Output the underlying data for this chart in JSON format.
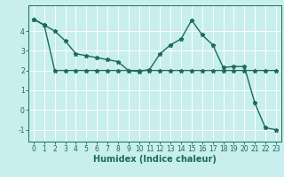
{
  "title": "",
  "xlabel": "Humidex (Indice chaleur)",
  "background_color": "#c8eeee",
  "grid_color": "#ffffff",
  "line_color": "#1a6b5a",
  "xlim": [
    -0.5,
    23.5
  ],
  "ylim": [
    -1.6,
    5.3
  ],
  "xticks": [
    0,
    1,
    2,
    3,
    4,
    5,
    6,
    7,
    8,
    9,
    10,
    11,
    12,
    13,
    14,
    15,
    16,
    17,
    18,
    19,
    20,
    21,
    22,
    23
  ],
  "yticks": [
    -1,
    0,
    1,
    2,
    3,
    4
  ],
  "line1_x": [
    0,
    1,
    2,
    3,
    4,
    5,
    6,
    7,
    8,
    9,
    10,
    11,
    12,
    13,
    14,
    15,
    16,
    17,
    18,
    19,
    20,
    21,
    22,
    23
  ],
  "line1_y": [
    4.6,
    4.3,
    4.0,
    3.5,
    2.85,
    2.75,
    2.65,
    2.55,
    2.45,
    2.0,
    1.95,
    2.05,
    2.85,
    3.3,
    3.6,
    4.55,
    3.8,
    3.3,
    2.15,
    2.2,
    2.2,
    0.35,
    -0.9,
    -1.0
  ],
  "line2_x": [
    0,
    1,
    2,
    3,
    4,
    5,
    6,
    7,
    8,
    9,
    10,
    11,
    12,
    13,
    14,
    15,
    16,
    17,
    18,
    19,
    20,
    21,
    22,
    23
  ],
  "line2_y": [
    4.6,
    4.3,
    2.0,
    2.0,
    2.0,
    2.0,
    2.0,
    2.0,
    2.0,
    2.0,
    2.0,
    2.0,
    2.0,
    2.0,
    2.0,
    2.0,
    2.0,
    2.0,
    2.0,
    2.0,
    2.0,
    2.0,
    2.0,
    2.0
  ],
  "marker_size": 3.5,
  "line_width": 1.0,
  "xlabel_fontsize": 7,
  "tick_labelsize": 5.5
}
